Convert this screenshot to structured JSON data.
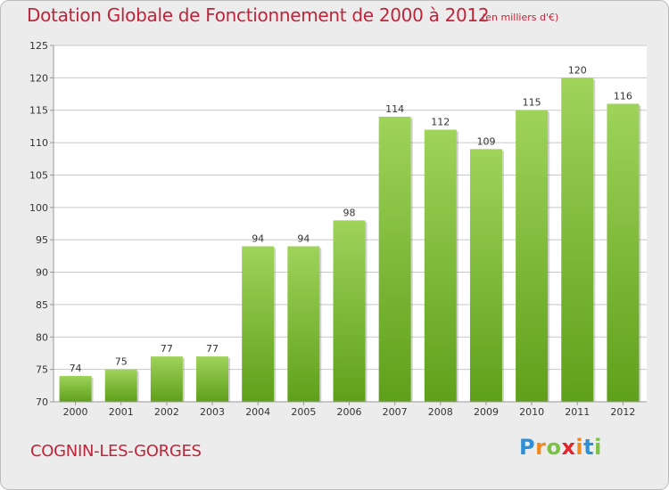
{
  "title": "Dotation Globale de Fonctionnement de 2000 à 2012",
  "unit_note": "(en milliers d'€)",
  "commune": "COGNIN-LES-GORGES",
  "logo": {
    "letters": [
      "P",
      "r",
      "o",
      "x",
      "i",
      "t",
      "i"
    ],
    "colors": [
      "#2e8fd6",
      "#f08a1c",
      "#7cc242",
      "#e0262f",
      "#f08a1c",
      "#2e8fd6",
      "#7cc242"
    ]
  },
  "colors": {
    "accent": "#c0243a",
    "bar_top": "#9fd35a",
    "bar_bottom": "#5fa01a",
    "grid": "#c8c8c8"
  },
  "chart_data": {
    "type": "bar",
    "categories": [
      "2000",
      "2001",
      "2002",
      "2003",
      "2004",
      "2005",
      "2006",
      "2007",
      "2008",
      "2009",
      "2010",
      "2011",
      "2012"
    ],
    "values": [
      74,
      75,
      77,
      77,
      94,
      94,
      98,
      114,
      112,
      109,
      115,
      120,
      116
    ],
    "yticks": [
      70,
      75,
      80,
      85,
      90,
      95,
      100,
      105,
      110,
      115,
      120,
      125
    ],
    "ylim": [
      70,
      125
    ],
    "grid": true,
    "data_labels": true,
    "xlabel": "",
    "ylabel": ""
  }
}
